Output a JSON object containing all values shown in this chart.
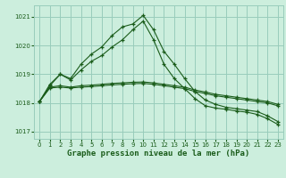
{
  "xlabel": "Graphe pression niveau de la mer (hPa)",
  "bg_color": "#cceedd",
  "grid_color": "#99ccbb",
  "line_color": "#1a5c1a",
  "ylim": [
    1016.75,
    1021.4
  ],
  "xlim": [
    -0.5,
    23.5
  ],
  "yticks": [
    1017,
    1018,
    1019,
    1020,
    1021
  ],
  "xticks": [
    0,
    1,
    2,
    3,
    4,
    5,
    6,
    7,
    8,
    9,
    10,
    11,
    12,
    13,
    14,
    15,
    16,
    17,
    18,
    19,
    20,
    21,
    22,
    23
  ],
  "series": [
    [
      1018.05,
      1018.65,
      1019.0,
      1018.85,
      1019.35,
      1019.7,
      1019.95,
      1020.35,
      1020.65,
      1020.75,
      1021.05,
      1020.55,
      1019.8,
      1019.35,
      1018.85,
      1018.4,
      1018.1,
      1017.95,
      1017.85,
      1017.8,
      1017.75,
      1017.7,
      1017.55,
      1017.35
    ],
    [
      1018.05,
      1018.6,
      1019.0,
      1018.8,
      1019.15,
      1019.45,
      1019.65,
      1019.95,
      1020.2,
      1020.55,
      1020.85,
      1020.2,
      1019.35,
      1018.85,
      1018.5,
      1018.15,
      1017.9,
      1017.82,
      1017.78,
      1017.72,
      1017.68,
      1017.6,
      1017.45,
      1017.25
    ],
    [
      1018.05,
      1018.55,
      1018.6,
      1018.55,
      1018.6,
      1018.62,
      1018.65,
      1018.68,
      1018.7,
      1018.72,
      1018.73,
      1018.7,
      1018.65,
      1018.6,
      1018.55,
      1018.45,
      1018.38,
      1018.3,
      1018.25,
      1018.2,
      1018.15,
      1018.1,
      1018.05,
      1017.95
    ],
    [
      1018.05,
      1018.52,
      1018.55,
      1018.52,
      1018.55,
      1018.57,
      1018.6,
      1018.63,
      1018.65,
      1018.67,
      1018.68,
      1018.65,
      1018.6,
      1018.55,
      1018.5,
      1018.4,
      1018.33,
      1018.25,
      1018.2,
      1018.15,
      1018.1,
      1018.05,
      1018.0,
      1017.9
    ]
  ]
}
